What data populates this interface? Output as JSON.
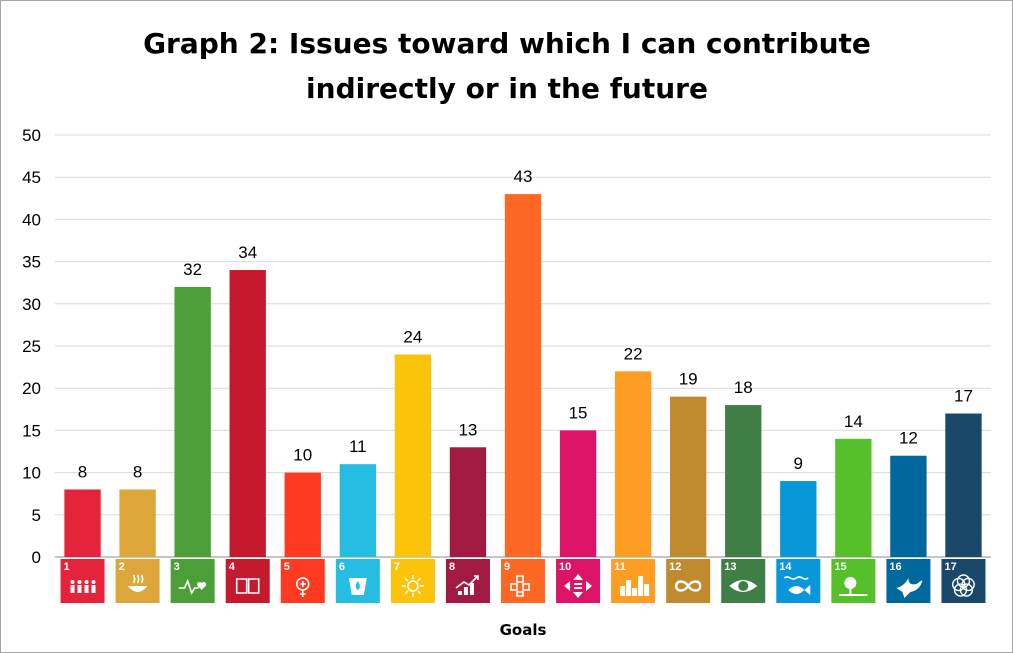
{
  "chart_data": {
    "type": "bar",
    "title_lines": [
      "Graph 2: Issues toward which I can contribute",
      "indirectly or in the future"
    ],
    "xlabel": "Goals",
    "ylabel": "",
    "ylim": [
      0,
      50
    ],
    "yticks": [
      0,
      5,
      10,
      15,
      20,
      25,
      30,
      35,
      40,
      45,
      50
    ],
    "grid": true,
    "legend": "none",
    "categories": [
      "1",
      "2",
      "3",
      "4",
      "5",
      "6",
      "7",
      "8",
      "9",
      "10",
      "11",
      "12",
      "13",
      "14",
      "15",
      "16",
      "17"
    ],
    "values": [
      8,
      8,
      32,
      34,
      10,
      11,
      24,
      13,
      43,
      15,
      22,
      19,
      18,
      9,
      14,
      12,
      17
    ],
    "colors": [
      "#e5243b",
      "#dda63a",
      "#4c9f38",
      "#c5192d",
      "#ff3a21",
      "#26bde2",
      "#fcc30b",
      "#a21942",
      "#fd6925",
      "#dd1367",
      "#fd9d24",
      "#bf8b2e",
      "#3f7e44",
      "#0a97d9",
      "#56c02b",
      "#00689d",
      "#19486a"
    ],
    "category_icons": [
      "people-icon",
      "bowl-icon",
      "heartbeat-icon",
      "book-icon",
      "gender-icon",
      "water-drop-icon",
      "sun-icon",
      "growth-chart-icon",
      "cubes-icon",
      "equality-arrows-icon",
      "city-icon",
      "infinity-icon",
      "eye-globe-icon",
      "fish-icon",
      "tree-icon",
      "dove-icon",
      "flower-rings-icon"
    ]
  }
}
